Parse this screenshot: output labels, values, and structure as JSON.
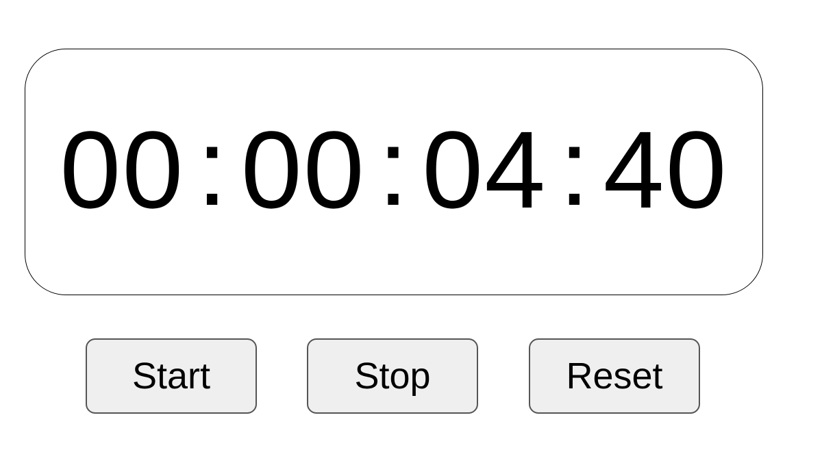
{
  "display": {
    "hours": "00",
    "minutes": "00",
    "seconds": "04",
    "hundredths": "40",
    "separator": ":"
  },
  "controls": {
    "start_label": "Start",
    "stop_label": "Stop",
    "reset_label": "Reset"
  },
  "colors": {
    "text": "#000000",
    "button_bg": "#efefef",
    "button_border": "#555555",
    "display_border": "#000000"
  }
}
